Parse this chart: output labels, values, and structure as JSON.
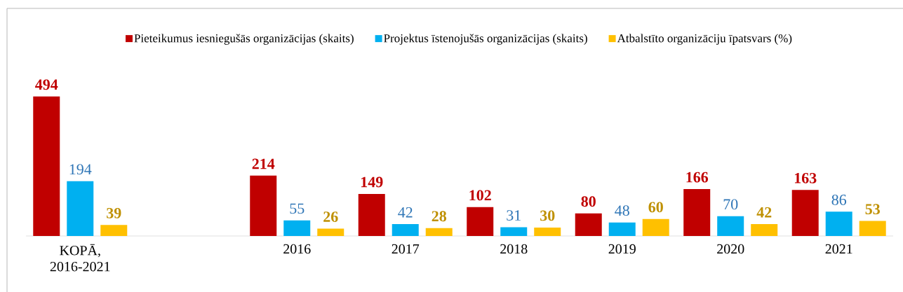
{
  "chart_data": {
    "type": "bar",
    "categories": [
      "KOPĀ, 2016-2021",
      null,
      "2016",
      "2017",
      "2018",
      "2019",
      "2020",
      "2021"
    ],
    "series": [
      {
        "name": "Pieteikumus iesniegušās organizācijas (skaits)",
        "color": "#c00000",
        "values": [
          494,
          null,
          214,
          149,
          102,
          80,
          166,
          163
        ]
      },
      {
        "name": "Projektus īstenojušās organizācijas (skaits)",
        "color": "#00b0f0",
        "values": [
          194,
          null,
          55,
          42,
          31,
          48,
          70,
          86
        ]
      },
      {
        "name": "Atbalstīto organizāciju īpatsvars (%)",
        "color": "#ffc000",
        "values": [
          39,
          null,
          26,
          28,
          30,
          60,
          42,
          53
        ]
      }
    ],
    "data_labels": true,
    "legend": "top",
    "tick_labels": "x"
  }
}
